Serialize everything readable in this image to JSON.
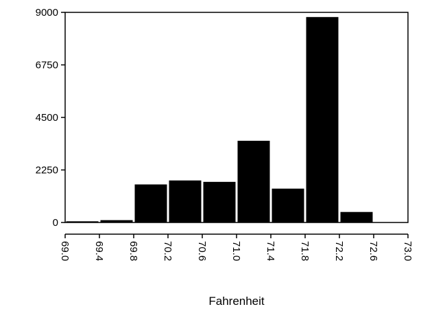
{
  "chart_data": {
    "type": "bar",
    "title": "",
    "xlabel": "Fahrenheit",
    "ylabel": "",
    "bin_width": 0.4,
    "bins": [
      {
        "start": 69.0,
        "end": 69.4,
        "value": 50
      },
      {
        "start": 69.4,
        "end": 69.8,
        "value": 100
      },
      {
        "start": 69.8,
        "end": 70.2,
        "value": 1630
      },
      {
        "start": 70.2,
        "end": 70.6,
        "value": 1800
      },
      {
        "start": 70.6,
        "end": 71.0,
        "value": 1740
      },
      {
        "start": 71.0,
        "end": 71.4,
        "value": 3500
      },
      {
        "start": 71.4,
        "end": 71.8,
        "value": 1450
      },
      {
        "start": 71.8,
        "end": 72.2,
        "value": 8800
      },
      {
        "start": 72.2,
        "end": 72.6,
        "value": 450
      },
      {
        "start": 72.6,
        "end": 73.0,
        "value": 0
      }
    ],
    "xlim": [
      69.0,
      73.0
    ],
    "ylim": [
      0,
      9000
    ],
    "x_ticks": [
      "69.0",
      "69.4",
      "69.8",
      "70.2",
      "70.6",
      "71.0",
      "71.4",
      "71.8",
      "72.2",
      "72.6",
      "73.0"
    ],
    "y_ticks": [
      "0",
      "2250",
      "4500",
      "6750",
      "9000"
    ],
    "grid": false,
    "legend": "none",
    "bar_color": "#000000"
  }
}
